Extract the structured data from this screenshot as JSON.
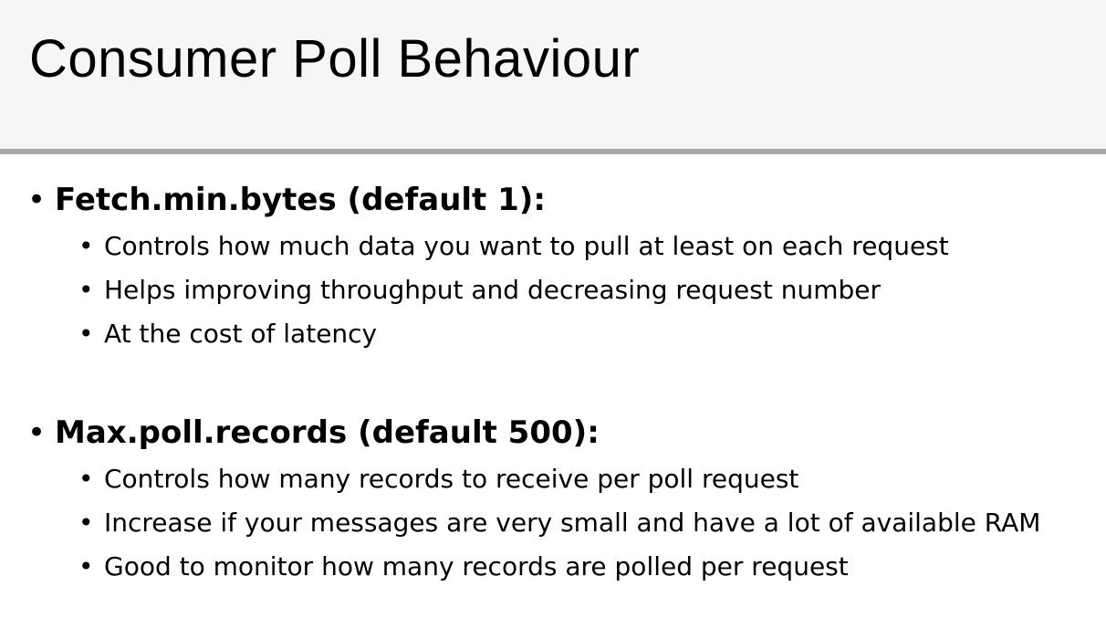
{
  "slide": {
    "title": "Consumer Poll Behaviour"
  },
  "sections": [
    {
      "heading": "Fetch.min.bytes (default 1):",
      "bullets": [
        "Controls how much data you want to pull at least on each request",
        "Helps improving throughput and decreasing request number",
        "At the cost of latency"
      ]
    },
    {
      "heading": "Max.poll.records (default 500):",
      "bullets": [
        "Controls how many records to receive per poll request",
        "Increase if your messages are very small and have a lot of available RAM",
        "Good to monitor how many records are polled per request"
      ]
    }
  ],
  "colors": {
    "header_background": "#f6f6f6",
    "rule": "#a8a8a8",
    "text": "#000000"
  }
}
